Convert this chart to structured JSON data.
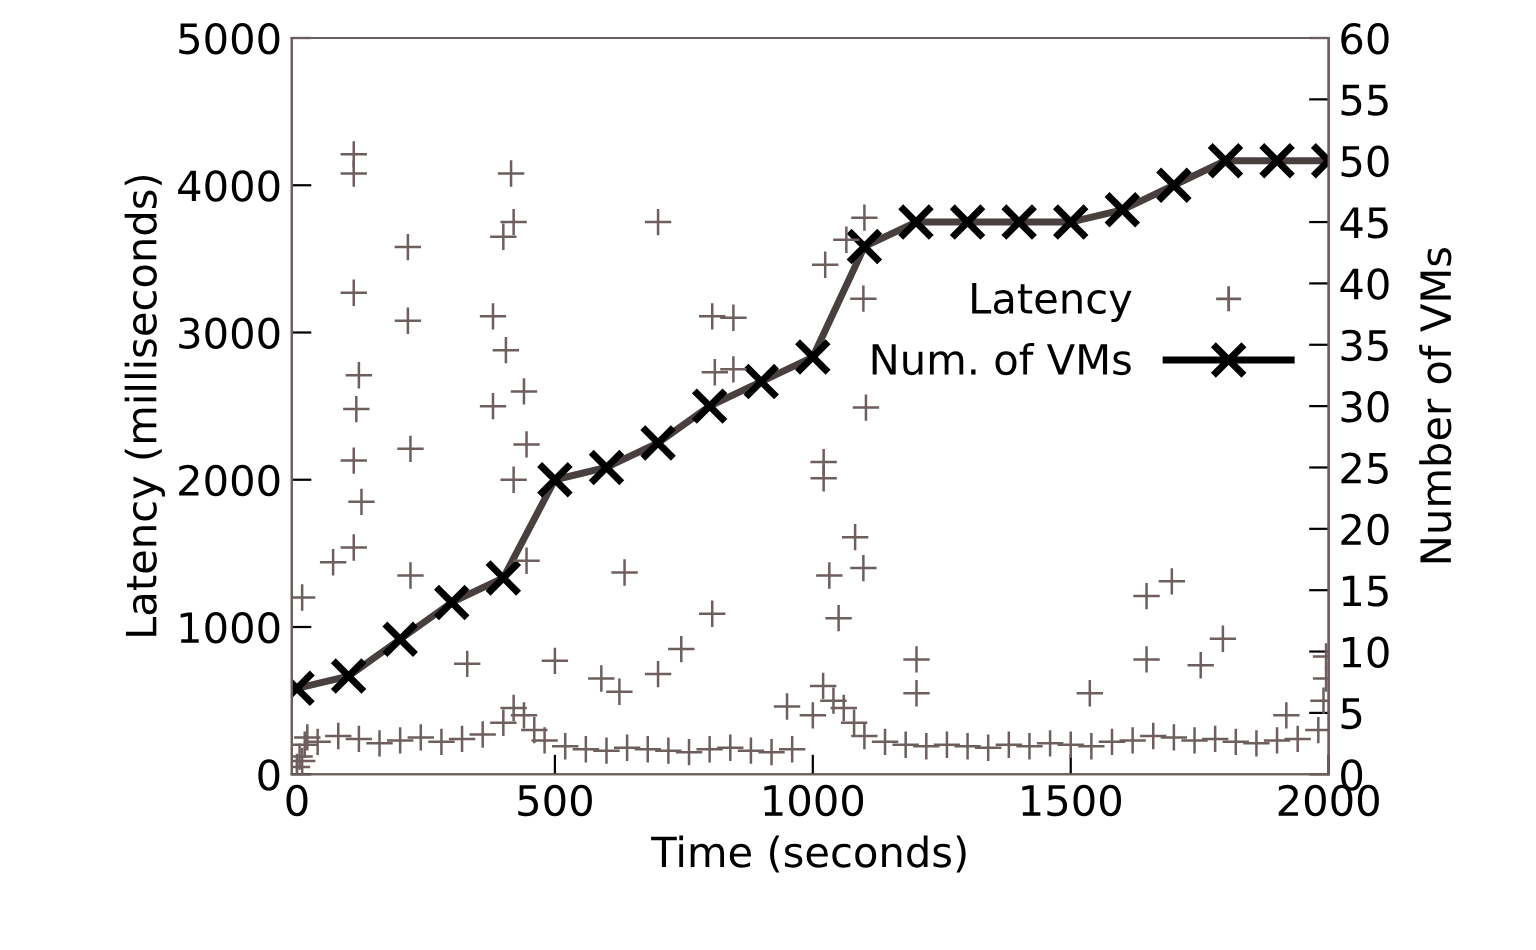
{
  "chart_data": {
    "type": "scatter",
    "xlabel": "Time (seconds)",
    "ylabel": "Latency (milliseconds)",
    "y2label": "Number of VMs",
    "xlim": [
      -10,
      2000
    ],
    "xticks": [
      0,
      500,
      1000,
      1500,
      2000
    ],
    "ylim": [
      0,
      5000
    ],
    "yticks": [
      0,
      1000,
      2000,
      3000,
      4000,
      5000
    ],
    "y2lim": [
      0,
      60
    ],
    "y2ticks": [
      0,
      5,
      10,
      15,
      20,
      25,
      30,
      35,
      40,
      45,
      50,
      55,
      60
    ],
    "grid": false,
    "legend": "right",
    "series": [
      {
        "name": "Latency",
        "marker": "plus",
        "color": "#6e5e5e",
        "x": [
          0,
          5,
          10,
          15,
          20,
          40,
          80,
          120,
          160,
          200,
          240,
          280,
          320,
          360,
          400,
          420,
          440,
          460,
          480,
          520,
          560,
          600,
          640,
          680,
          720,
          760,
          800,
          840,
          880,
          920,
          960,
          1000,
          1020,
          1040,
          1060,
          1080,
          1100,
          1140,
          1180,
          1220,
          1260,
          1300,
          1340,
          1380,
          1420,
          1460,
          1500,
          1540,
          1580,
          1620,
          1660,
          1700,
          1740,
          1780,
          1820,
          1860,
          1900,
          1940,
          1980,
          1990,
          1995,
          110,
          110,
          110,
          120,
          115,
          110,
          125,
          110,
          70,
          215,
          215,
          220,
          220,
          415,
          420,
          400,
          380,
          405,
          440,
          380,
          445,
          420,
          445,
          700,
          635,
          805,
          810,
          805,
          500,
          590,
          625,
          700,
          745,
          10,
          330,
          846,
          846,
          1024,
          1065,
          1100,
          1098,
          1103,
          1021,
          1021,
          1082,
          1032,
          1098,
          1050,
          1201,
          1201,
          950,
          1537,
          1647,
          1696,
          1795,
          1752,
          1647,
          1995,
          1918
        ],
        "values": [
          50,
          120,
          90,
          200,
          250,
          220,
          260,
          240,
          210,
          230,
          250,
          220,
          240,
          270,
          350,
          450,
          400,
          300,
          230,
          190,
          170,
          160,
          180,
          170,
          160,
          150,
          170,
          180,
          160,
          150,
          170,
          400,
          600,
          500,
          450,
          350,
          260,
          220,
          200,
          190,
          200,
          190,
          180,
          200,
          190,
          210,
          200,
          190,
          220,
          230,
          260,
          250,
          230,
          240,
          220,
          210,
          230,
          240,
          300,
          500,
          650,
          4210,
          4080,
          3270,
          2710,
          2480,
          2130,
          1850,
          1540,
          1440,
          3580,
          3080,
          2210,
          1350,
          4080,
          3750,
          3650,
          3110,
          2880,
          2600,
          2500,
          2240,
          2000,
          1450,
          3750,
          1370,
          3110,
          2730,
          1090,
          770,
          650,
          560,
          680,
          850,
          1200,
          750,
          3100,
          2750,
          3460,
          3630,
          3780,
          3230,
          2490,
          2010,
          2120,
          1610,
          1350,
          1400,
          1060,
          780,
          550,
          460,
          550,
          1210,
          1310,
          920,
          740,
          780,
          800,
          400
        ]
      },
      {
        "name": "Num. of VMs",
        "type": "line",
        "axis": "y2",
        "marker": "cross",
        "line_style": "solid",
        "color": "#4a3f3f",
        "x": [
          0,
          100,
          200,
          300,
          400,
          500,
          600,
          700,
          800,
          900,
          1000,
          1100,
          1200,
          1300,
          1400,
          1500,
          1600,
          1700,
          1800,
          1900,
          2000
        ],
        "values": [
          7,
          8,
          11,
          14,
          16,
          24,
          25,
          27,
          30,
          32,
          34,
          43,
          45,
          45,
          45,
          45,
          46,
          48,
          50,
          50,
          50
        ]
      }
    ]
  }
}
